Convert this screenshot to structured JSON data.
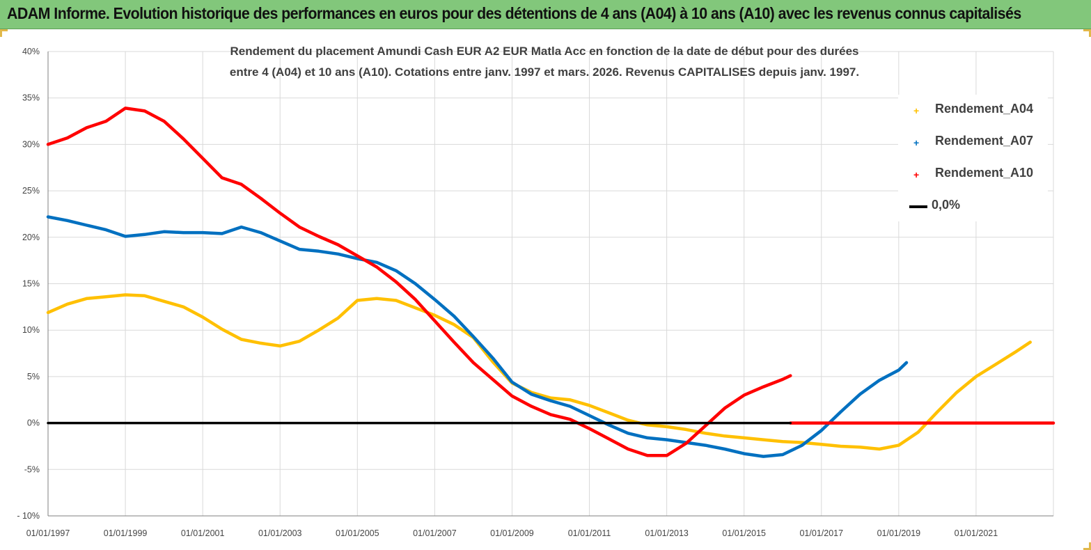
{
  "banner": {
    "title": "ADAM Informe. Evolution historique des performances en euros pour des détentions de 4 ans (A04) à 10 ans (A10) avec les revenus connus capitalisés"
  },
  "colors": {
    "banner": "#82c77b",
    "a04": "#ffc000",
    "a07": "#0070c0",
    "a10": "#ff0000",
    "zero": "#000000",
    "grid": "#d9d9d9"
  },
  "chart_data": {
    "type": "line",
    "title_line1": "Rendement du placement Amundi Cash EUR A2 EUR Matla Acc en fonction de la date de début pour des durées",
    "title_line2": "entre 4 (A04) et 10 ans (A10). Cotations entre janv. 1997 et mars. 2026. Revenus CAPITALISES depuis janv. 1997.",
    "xlabel": "",
    "ylabel": "",
    "xlim": [
      1997.0,
      2023.0
    ],
    "ylim": [
      -10,
      40
    ],
    "x_ticks": [
      1997,
      1999,
      2001,
      2003,
      2005,
      2007,
      2009,
      2011,
      2013,
      2015,
      2017,
      2019,
      2021
    ],
    "x_tick_labels": [
      "01/01/1997",
      "01/01/1999",
      "01/01/2001",
      "01/01/2003",
      "01/01/2005",
      "01/01/2007",
      "01/01/2009",
      "01/01/2011",
      "01/01/2013",
      "01/01/2015",
      "01/01/2017",
      "01/01/2019",
      "01/01/2021"
    ],
    "y_ticks": [
      -10,
      -5,
      0,
      5,
      10,
      15,
      20,
      25,
      30,
      35,
      40
    ],
    "y_tick_labels": [
      "- 10%",
      "-5%",
      "0%",
      "5%",
      "10%",
      "15%",
      "20%",
      "25%",
      "30%",
      "35%",
      "40%"
    ],
    "legend_position": "top-right",
    "series": [
      {
        "name": "Rendement_A04",
        "color": "#ffc000",
        "x": [
          1997.0,
          1997.5,
          1998.0,
          1998.5,
          1999.0,
          1999.5,
          2000.0,
          2000.5,
          2001.0,
          2001.5,
          2002.0,
          2002.5,
          2003.0,
          2003.5,
          2004.0,
          2004.5,
          2005.0,
          2005.5,
          2006.0,
          2006.5,
          2007.0,
          2007.5,
          2008.0,
          2008.5,
          2009.0,
          2009.5,
          2010.0,
          2010.5,
          2011.0,
          2011.5,
          2012.0,
          2012.5,
          2013.0,
          2013.5,
          2014.0,
          2014.5,
          2015.0,
          2015.5,
          2016.0,
          2016.5,
          2017.0,
          2017.5,
          2018.0,
          2018.5,
          2019.0,
          2019.5,
          2020.0,
          2020.5,
          2021.0,
          2021.5,
          2022.0,
          2022.4
        ],
        "y": [
          11.9,
          12.8,
          13.4,
          13.6,
          13.8,
          13.7,
          13.1,
          12.5,
          11.4,
          10.1,
          9.0,
          8.6,
          8.3,
          8.8,
          10.0,
          11.3,
          13.2,
          13.4,
          13.2,
          12.4,
          11.6,
          10.6,
          9.2,
          6.6,
          4.3,
          3.3,
          2.7,
          2.5,
          1.9,
          1.1,
          0.3,
          -0.2,
          -0.4,
          -0.7,
          -1.1,
          -1.4,
          -1.6,
          -1.8,
          -2.0,
          -2.1,
          -2.3,
          -2.5,
          -2.6,
          -2.8,
          -2.4,
          -1.0,
          1.2,
          3.3,
          5.0,
          6.3,
          7.6,
          8.7
        ]
      },
      {
        "name": "Rendement_A07",
        "color": "#0070c0",
        "x": [
          1997.0,
          1997.5,
          1998.0,
          1998.5,
          1999.0,
          1999.5,
          2000.0,
          2000.5,
          2001.0,
          2001.5,
          2002.0,
          2002.5,
          2003.0,
          2003.5,
          2004.0,
          2004.5,
          2005.0,
          2005.5,
          2006.0,
          2006.5,
          2007.0,
          2007.5,
          2008.0,
          2008.5,
          2009.0,
          2009.5,
          2010.0,
          2010.5,
          2011.0,
          2011.5,
          2012.0,
          2012.5,
          2013.0,
          2013.5,
          2014.0,
          2014.5,
          2015.0,
          2015.5,
          2016.0,
          2016.5,
          2017.0,
          2017.5,
          2018.0,
          2018.5,
          2019.0,
          2019.2
        ],
        "y": [
          22.2,
          21.8,
          21.3,
          20.8,
          20.1,
          20.3,
          20.6,
          20.5,
          20.5,
          20.4,
          21.1,
          20.5,
          19.6,
          18.7,
          18.5,
          18.2,
          17.7,
          17.3,
          16.4,
          15.0,
          13.3,
          11.5,
          9.3,
          7.0,
          4.4,
          3.1,
          2.4,
          1.8,
          0.8,
          -0.2,
          -1.1,
          -1.6,
          -1.8,
          -2.1,
          -2.4,
          -2.8,
          -3.3,
          -3.6,
          -3.4,
          -2.4,
          -0.8,
          1.2,
          3.1,
          4.6,
          5.7,
          6.5
        ]
      },
      {
        "name": "Rendement_A10",
        "color": "#ff0000",
        "x": [
          1997.0,
          1997.5,
          1998.0,
          1998.5,
          1999.0,
          1999.5,
          2000.0,
          2000.5,
          2001.0,
          2001.5,
          2002.0,
          2002.5,
          2003.0,
          2003.5,
          2004.0,
          2004.5,
          2005.0,
          2005.5,
          2006.0,
          2006.5,
          2007.0,
          2007.5,
          2008.0,
          2008.5,
          2009.0,
          2009.5,
          2010.0,
          2010.5,
          2011.0,
          2011.5,
          2012.0,
          2012.5,
          2013.0,
          2013.5,
          2014.0,
          2014.5,
          2015.0,
          2015.5,
          2016.0,
          2016.2
        ],
        "y": [
          30.0,
          30.7,
          31.8,
          32.5,
          33.9,
          33.6,
          32.5,
          30.6,
          28.5,
          26.4,
          25.7,
          24.2,
          22.6,
          21.1,
          20.1,
          19.2,
          18.0,
          16.8,
          15.2,
          13.3,
          11.0,
          8.7,
          6.5,
          4.7,
          2.9,
          1.8,
          0.9,
          0.4,
          -0.6,
          -1.7,
          -2.8,
          -3.5,
          -3.5,
          -2.2,
          -0.3,
          1.6,
          3.0,
          3.9,
          4.7,
          5.1
        ]
      },
      {
        "name": "Rendement_A10 (0,0% flat)",
        "color": "#ff0000",
        "x": [
          2016.2,
          2023.0
        ],
        "y": [
          0.0,
          0.0
        ]
      },
      {
        "name": "0,0%",
        "color": "#000000",
        "x": [
          1997.0,
          2016.2
        ],
        "y": [
          0.0,
          0.0
        ]
      }
    ]
  },
  "legend": {
    "items": [
      {
        "label": "Rendement_A04",
        "marker": "+",
        "color": "#ffc000"
      },
      {
        "label": "Rendement_A07",
        "marker": "+",
        "color": "#0070c0"
      },
      {
        "label": "Rendement_A10",
        "marker": "+",
        "color": "#ff0000"
      },
      {
        "label": "0,0%",
        "marker": "line",
        "color": "#000000"
      }
    ]
  }
}
